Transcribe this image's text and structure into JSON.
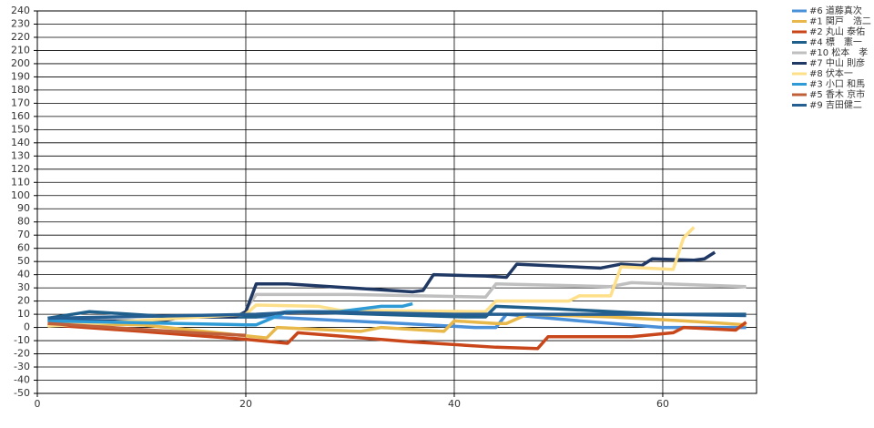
{
  "chart_data": {
    "type": "line",
    "xlim": [
      0,
      69
    ],
    "xticks": [
      0,
      20,
      40,
      60
    ],
    "ylim": [
      -50,
      240
    ],
    "yticks": [
      -50,
      -40,
      -30,
      -20,
      -10,
      0,
      10,
      20,
      30,
      40,
      50,
      60,
      70,
      80,
      90,
      100,
      110,
      120,
      130,
      140,
      150,
      160,
      170,
      180,
      190,
      200,
      210,
      220,
      230,
      240
    ],
    "grid": true,
    "legend": "top-right",
    "series": [
      {
        "name": "#6 道藤真次",
        "color": "#4a90d9",
        "x": [
          1,
          12,
          13,
          22,
          35,
          42,
          44,
          45,
          52,
          60,
          68
        ],
        "values": [
          6,
          4,
          8,
          8,
          3,
          0,
          0,
          10,
          5,
          0,
          0
        ]
      },
      {
        "name": "#1 関戸　浩二",
        "color": "#e8b84a",
        "x": [
          1,
          10,
          22,
          23,
          31,
          33,
          39,
          40,
          44,
          45,
          47,
          55,
          62,
          68
        ],
        "values": [
          3,
          2,
          -8,
          0,
          -3,
          0,
          -3,
          5,
          3,
          3,
          10,
          8,
          5,
          2
        ]
      },
      {
        "name": "#2 丸山 泰佑",
        "color": "#c8461a",
        "x": [
          1,
          10,
          20,
          24,
          25,
          36,
          44,
          48,
          49,
          57,
          61,
          62,
          67,
          68
        ],
        "values": [
          2,
          -3,
          -9,
          -12,
          -4,
          -11,
          -15,
          -16,
          -7,
          -7,
          -4,
          0,
          -2,
          4
        ]
      },
      {
        "name": "#4 標　憲一",
        "color": "#1f5f8b",
        "x": [
          1,
          5,
          13,
          21,
          24,
          41,
          43,
          44,
          50,
          60,
          68
        ],
        "values": [
          7,
          12,
          8,
          8,
          12,
          8,
          8,
          16,
          14,
          10,
          10
        ]
      },
      {
        "name": "#10 松本　孝",
        "color": "#bfbfbf",
        "x": [
          20,
          21,
          30,
          43,
          44,
          55,
          57,
          68
        ],
        "values": [
          14,
          25,
          25,
          23,
          33,
          31,
          34,
          31
        ]
      },
      {
        "name": "#7 中山 則彦",
        "color": "#1f3864",
        "x": [
          1,
          12,
          14,
          19,
          20,
          21,
          24,
          36,
          37,
          38,
          43,
          45,
          46,
          54,
          56,
          58,
          59,
          63,
          64,
          65
        ],
        "values": [
          5,
          5,
          8,
          8,
          12,
          33,
          33,
          27,
          28,
          40,
          39,
          38,
          48,
          45,
          48,
          47,
          52,
          51,
          52,
          57
        ]
      },
      {
        "name": "#8 伏本一",
        "color": "#ffe08a",
        "x": [
          1,
          20,
          21,
          27,
          29,
          43,
          44,
          51,
          52,
          55,
          56,
          61,
          62,
          63
        ],
        "values": [
          1,
          10,
          17,
          16,
          13,
          12,
          20,
          20,
          24,
          24,
          46,
          44,
          68,
          76
        ]
      },
      {
        "name": "#3 小口 和馬",
        "color": "#2e9bd6",
        "x": [
          1,
          20,
          21,
          24,
          29,
          33,
          35,
          36
        ],
        "values": [
          5,
          2,
          2,
          12,
          12,
          16,
          16,
          18
        ]
      },
      {
        "name": "#5 香木 京市",
        "color": "#c0603a",
        "x": [
          1,
          15,
          20
        ],
        "values": [
          3,
          -4,
          -6
        ]
      },
      {
        "name": "#9 吉田健二",
        "color": "#255e91",
        "x": [
          1,
          21,
          26,
          40,
          60,
          68
        ],
        "values": [
          7,
          10,
          12,
          10,
          10,
          9
        ]
      }
    ]
  }
}
